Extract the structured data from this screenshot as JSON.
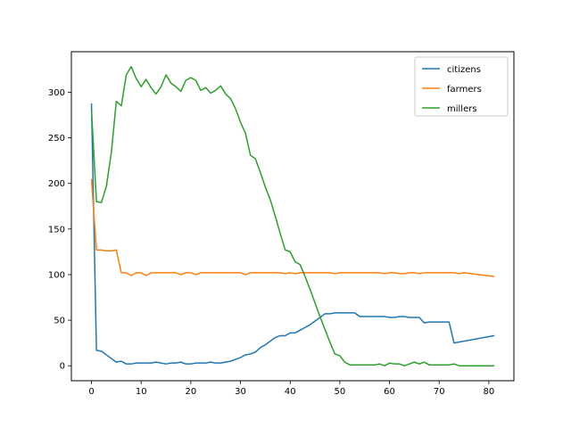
{
  "chart_data": {
    "type": "line",
    "title": "",
    "xlabel": "",
    "ylabel": "",
    "xlim": [
      -4.05,
      85.05
    ],
    "ylim": [
      -16.4,
      344.4
    ],
    "xticks": [
      0,
      10,
      20,
      30,
      40,
      50,
      60,
      70,
      80
    ],
    "yticks": [
      0,
      50,
      100,
      150,
      200,
      250,
      300
    ],
    "grid": false,
    "legend_position": "upper right",
    "series": [
      {
        "name": "citizens",
        "color": "#1f77b4",
        "x": [
          0,
          1,
          2,
          3,
          4,
          5,
          6,
          7,
          8,
          9,
          10,
          11,
          12,
          13,
          14,
          15,
          16,
          17,
          18,
          19,
          20,
          21,
          22,
          23,
          24,
          25,
          26,
          27,
          28,
          29,
          30,
          31,
          32,
          33,
          34,
          35,
          36,
          37,
          38,
          39,
          40,
          41,
          42,
          43,
          44,
          45,
          46,
          47,
          48,
          49,
          50,
          51,
          52,
          53,
          54,
          55,
          56,
          57,
          58,
          59,
          60,
          61,
          62,
          63,
          64,
          65,
          66,
          67,
          68,
          69,
          70,
          71,
          72,
          73,
          81
        ],
        "values": [
          287,
          17,
          16,
          12,
          8,
          4,
          5,
          2,
          2,
          3,
          3,
          3,
          3,
          4,
          3,
          2,
          3,
          3,
          4,
          2,
          2,
          3,
          3,
          3,
          4,
          3,
          3,
          4,
          5,
          7,
          9,
          12,
          13,
          15,
          20,
          23,
          27,
          31,
          33,
          33,
          36,
          36,
          39,
          42,
          45,
          49,
          53,
          57,
          57,
          58,
          58,
          58,
          58,
          58,
          54,
          54,
          54,
          54,
          54,
          54,
          53,
          53,
          54,
          54,
          53,
          53,
          53,
          47,
          48,
          48,
          48,
          48,
          48,
          25,
          33
        ]
      },
      {
        "name": "farmers",
        "color": "#ff7f0e",
        "x": [
          0,
          1,
          2,
          3,
          4,
          5,
          6,
          7,
          8,
          9,
          10,
          11,
          12,
          13,
          14,
          15,
          16,
          17,
          18,
          19,
          20,
          21,
          22,
          23,
          24,
          25,
          26,
          27,
          28,
          29,
          30,
          31,
          32,
          33,
          34,
          35,
          36,
          37,
          38,
          39,
          40,
          41,
          42,
          43,
          44,
          45,
          46,
          47,
          48,
          49,
          50,
          51,
          52,
          53,
          54,
          55,
          56,
          57,
          58,
          59,
          60,
          61,
          62,
          63,
          64,
          65,
          66,
          67,
          68,
          69,
          70,
          71,
          72,
          73,
          74,
          75,
          81
        ],
        "values": [
          204,
          127,
          127,
          126,
          126,
          127,
          102,
          102,
          99,
          102,
          102,
          99,
          102,
          102,
          102,
          102,
          102,
          102,
          100,
          102,
          102,
          100,
          102,
          102,
          102,
          102,
          102,
          102,
          102,
          102,
          102,
          100,
          102,
          102,
          102,
          102,
          102,
          102,
          102,
          101,
          102,
          101,
          102,
          102,
          102,
          102,
          102,
          102,
          102,
          101,
          102,
          102,
          102,
          102,
          102,
          102,
          102,
          102,
          102,
          101,
          102,
          102,
          101,
          101,
          102,
          102,
          101,
          102,
          102,
          102,
          102,
          102,
          102,
          102,
          101,
          102,
          98
        ]
      },
      {
        "name": "millers",
        "color": "#2ca02c",
        "x": [
          0,
          1,
          2,
          3,
          4,
          5,
          6,
          7,
          8,
          9,
          10,
          11,
          12,
          13,
          14,
          15,
          16,
          17,
          18,
          19,
          20,
          21,
          22,
          23,
          24,
          25,
          26,
          27,
          28,
          29,
          30,
          31,
          32,
          33,
          34,
          35,
          36,
          37,
          38,
          39,
          40,
          41,
          42,
          43,
          44,
          45,
          46,
          47,
          48,
          49,
          50,
          51,
          52,
          53,
          54,
          55,
          56,
          57,
          58,
          59,
          60,
          61,
          62,
          63,
          64,
          65,
          66,
          67,
          68,
          69,
          70,
          71,
          72,
          73,
          74,
          75,
          81
        ],
        "values": [
          280,
          180,
          179,
          197,
          234,
          290,
          285,
          319,
          328,
          315,
          306,
          314,
          305,
          298,
          306,
          319,
          310,
          306,
          301,
          313,
          316,
          313,
          302,
          305,
          299,
          302,
          307,
          298,
          293,
          282,
          267,
          255,
          231,
          227,
          212,
          196,
          182,
          164,
          145,
          127,
          125,
          114,
          111,
          98,
          84,
          69,
          54,
          40,
          26,
          13,
          11,
          4,
          1,
          1,
          1,
          1,
          1,
          1,
          2,
          0,
          3,
          2,
          2,
          0,
          2,
          4,
          2,
          4,
          1,
          1,
          1,
          1,
          1,
          2,
          0,
          0,
          0
        ]
      }
    ]
  }
}
